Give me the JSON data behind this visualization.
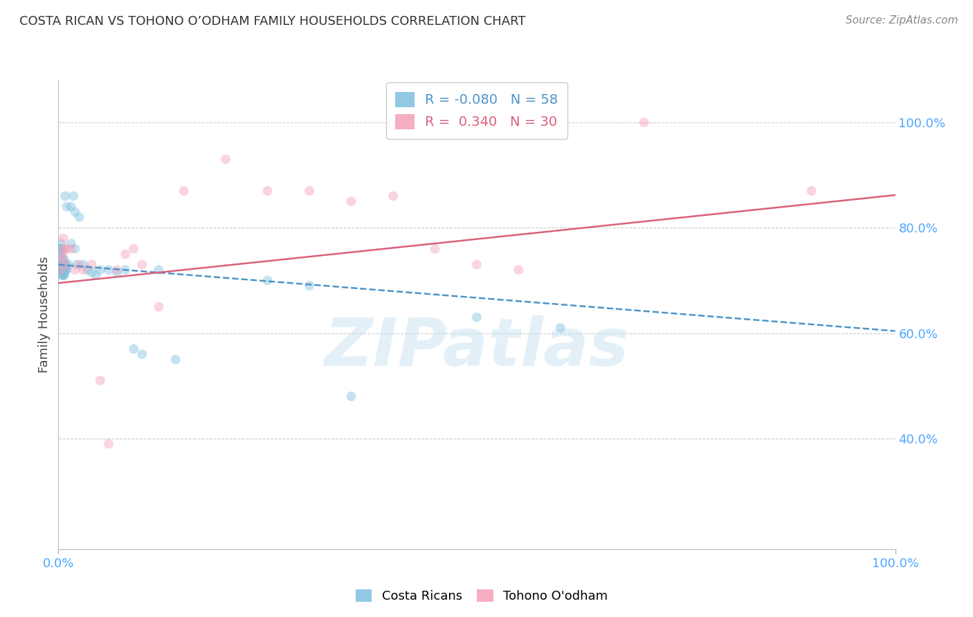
{
  "title": "COSTA RICAN VS TOHONO O’ODHAM FAMILY HOUSEHOLDS CORRELATION CHART",
  "source": "Source: ZipAtlas.com",
  "ylabel": "Family Households",
  "blue_R": -0.08,
  "blue_N": 58,
  "pink_R": 0.34,
  "pink_N": 30,
  "blue_scatter_x": [
    0.001,
    0.001,
    0.002,
    0.002,
    0.002,
    0.003,
    0.003,
    0.003,
    0.003,
    0.004,
    0.004,
    0.004,
    0.004,
    0.005,
    0.005,
    0.005,
    0.005,
    0.005,
    0.006,
    0.006,
    0.006,
    0.006,
    0.007,
    0.007,
    0.007,
    0.007,
    0.008,
    0.008,
    0.008,
    0.009,
    0.009,
    0.01,
    0.01,
    0.012,
    0.015,
    0.015,
    0.018,
    0.02,
    0.02,
    0.022,
    0.025,
    0.03,
    0.035,
    0.04,
    0.045,
    0.05,
    0.06,
    0.07,
    0.08,
    0.09,
    0.1,
    0.12,
    0.14,
    0.25,
    0.3,
    0.35,
    0.5,
    0.6
  ],
  "blue_scatter_y": [
    0.73,
    0.75,
    0.76,
    0.73,
    0.72,
    0.77,
    0.75,
    0.73,
    0.72,
    0.76,
    0.74,
    0.72,
    0.71,
    0.76,
    0.74,
    0.73,
    0.72,
    0.71,
    0.73,
    0.72,
    0.715,
    0.71,
    0.74,
    0.725,
    0.715,
    0.71,
    0.86,
    0.73,
    0.72,
    0.73,
    0.72,
    0.84,
    0.72,
    0.73,
    0.84,
    0.77,
    0.86,
    0.83,
    0.76,
    0.73,
    0.82,
    0.73,
    0.72,
    0.715,
    0.71,
    0.72,
    0.72,
    0.715,
    0.72,
    0.57,
    0.56,
    0.72,
    0.55,
    0.7,
    0.69,
    0.48,
    0.63,
    0.61
  ],
  "pink_scatter_x": [
    0.003,
    0.004,
    0.005,
    0.006,
    0.007,
    0.008,
    0.01,
    0.015,
    0.02,
    0.025,
    0.03,
    0.04,
    0.05,
    0.06,
    0.07,
    0.08,
    0.09,
    0.1,
    0.12,
    0.15,
    0.2,
    0.25,
    0.3,
    0.35,
    0.4,
    0.45,
    0.5,
    0.55,
    0.7,
    0.9
  ],
  "pink_scatter_y": [
    0.72,
    0.74,
    0.75,
    0.78,
    0.76,
    0.73,
    0.76,
    0.76,
    0.72,
    0.73,
    0.72,
    0.73,
    0.51,
    0.39,
    0.72,
    0.75,
    0.76,
    0.73,
    0.65,
    0.87,
    0.93,
    0.87,
    0.87,
    0.85,
    0.86,
    0.76,
    0.73,
    0.72,
    1.0,
    0.87
  ],
  "blue_line_x0": 0.0,
  "blue_line_x1": 1.0,
  "blue_line_y0": 0.73,
  "blue_line_y1": 0.604,
  "pink_line_x0": 0.0,
  "pink_line_x1": 1.0,
  "pink_line_y0": 0.695,
  "pink_line_y1": 0.862,
  "xlim": [
    0.0,
    1.0
  ],
  "ylim": [
    0.19,
    1.08
  ],
  "xticks": [
    0.0,
    1.0
  ],
  "xtick_labels": [
    "0.0%",
    "100.0%"
  ],
  "yticks": [
    0.4,
    0.6,
    0.8,
    1.0
  ],
  "ytick_labels": [
    "40.0%",
    "60.0%",
    "80.0%",
    "100.0%"
  ],
  "blue_color": "#7fbfdf",
  "pink_color": "#f4a0b8",
  "blue_line_color": "#4d94c8",
  "pink_line_color": "#d9607a",
  "grid_color": "#cccccc",
  "tick_color": "#4da6ff",
  "title_fontsize": 13,
  "source_fontsize": 11,
  "scatter_size": 100,
  "scatter_alpha": 0.45,
  "watermark": "ZIPatlas",
  "watermark_color": "#c5dff0",
  "watermark_alpha": 0.45,
  "watermark_fontsize": 70
}
